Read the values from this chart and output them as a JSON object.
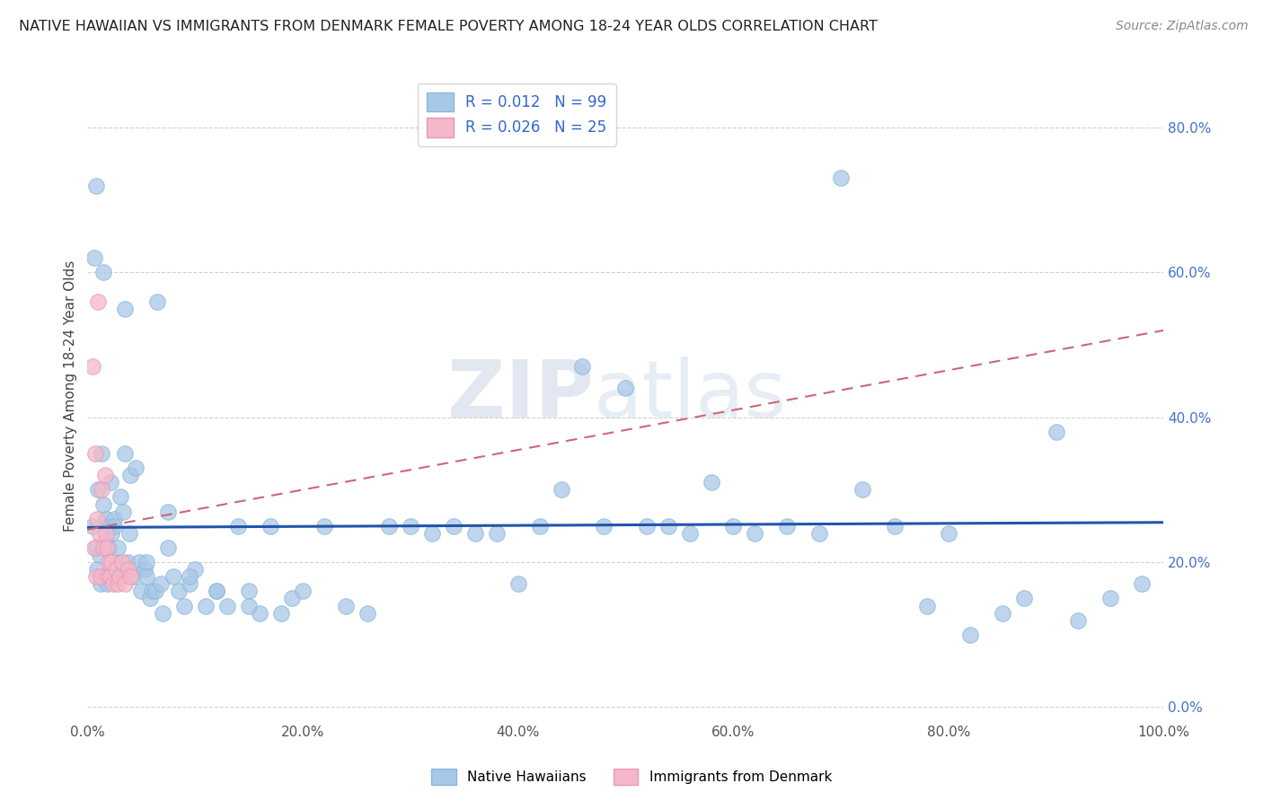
{
  "title": "NATIVE HAWAIIAN VS IMMIGRANTS FROM DENMARK FEMALE POVERTY AMONG 18-24 YEAR OLDS CORRELATION CHART",
  "source": "Source: ZipAtlas.com",
  "ylabel": "Female Poverty Among 18-24 Year Olds",
  "watermark": "ZIPatlas",
  "r_blue": 0.012,
  "n_blue": 99,
  "r_pink": 0.026,
  "n_pink": 25,
  "legend_label_blue": "Native Hawaiians",
  "legend_label_pink": "Immigrants from Denmark",
  "blue_color": "#a8c8e8",
  "pink_color": "#f4b8c8",
  "trend_blue_color": "#2255aa",
  "trend_pink_color": "#cc6677",
  "xlim": [
    0.0,
    1.0
  ],
  "ylim": [
    -0.02,
    0.88
  ],
  "xticks": [
    0.0,
    0.2,
    0.4,
    0.6,
    0.8,
    1.0
  ],
  "yticks_right": [
    0.0,
    0.2,
    0.4,
    0.6,
    0.8
  ],
  "background_color": "#ffffff",
  "grid_color": "#cccccc",
  "blue_trend_y0": 0.248,
  "blue_trend_y1": 0.255,
  "pink_trend_y0": 0.245,
  "pink_trend_y1": 0.52,
  "blue_x": [
    0.005,
    0.006,
    0.008,
    0.009,
    0.01,
    0.011,
    0.012,
    0.013,
    0.015,
    0.016,
    0.017,
    0.018,
    0.019,
    0.02,
    0.021,
    0.022,
    0.023,
    0.025,
    0.027,
    0.028,
    0.03,
    0.031,
    0.033,
    0.035,
    0.037,
    0.039,
    0.04,
    0.042,
    0.045,
    0.048,
    0.05,
    0.053,
    0.055,
    0.058,
    0.06,
    0.063,
    0.065,
    0.068,
    0.07,
    0.075,
    0.08,
    0.085,
    0.09,
    0.095,
    0.1,
    0.11,
    0.12,
    0.13,
    0.14,
    0.15,
    0.16,
    0.17,
    0.18,
    0.19,
    0.2,
    0.22,
    0.24,
    0.26,
    0.28,
    0.3,
    0.32,
    0.34,
    0.36,
    0.38,
    0.4,
    0.42,
    0.44,
    0.46,
    0.48,
    0.5,
    0.52,
    0.54,
    0.56,
    0.58,
    0.6,
    0.62,
    0.65,
    0.68,
    0.7,
    0.72,
    0.75,
    0.78,
    0.8,
    0.82,
    0.85,
    0.87,
    0.9,
    0.92,
    0.95,
    0.98,
    0.008,
    0.015,
    0.025,
    0.035,
    0.055,
    0.075,
    0.095,
    0.12,
    0.15
  ],
  "blue_y": [
    0.25,
    0.62,
    0.22,
    0.19,
    0.3,
    0.21,
    0.17,
    0.35,
    0.28,
    0.23,
    0.26,
    0.17,
    0.25,
    0.22,
    0.31,
    0.24,
    0.18,
    0.26,
    0.2,
    0.22,
    0.18,
    0.29,
    0.27,
    0.55,
    0.2,
    0.24,
    0.32,
    0.18,
    0.33,
    0.2,
    0.16,
    0.19,
    0.2,
    0.15,
    0.16,
    0.16,
    0.56,
    0.17,
    0.13,
    0.22,
    0.18,
    0.16,
    0.14,
    0.17,
    0.19,
    0.14,
    0.16,
    0.14,
    0.25,
    0.16,
    0.13,
    0.25,
    0.13,
    0.15,
    0.16,
    0.25,
    0.14,
    0.13,
    0.25,
    0.25,
    0.24,
    0.25,
    0.24,
    0.24,
    0.17,
    0.25,
    0.3,
    0.47,
    0.25,
    0.44,
    0.25,
    0.25,
    0.24,
    0.31,
    0.25,
    0.24,
    0.25,
    0.24,
    0.73,
    0.3,
    0.25,
    0.14,
    0.24,
    0.1,
    0.13,
    0.15,
    0.38,
    0.12,
    0.15,
    0.17,
    0.72,
    0.6,
    0.25,
    0.35,
    0.18,
    0.27,
    0.18,
    0.16,
    0.14
  ],
  "pink_x": [
    0.005,
    0.006,
    0.007,
    0.008,
    0.009,
    0.01,
    0.011,
    0.012,
    0.013,
    0.015,
    0.016,
    0.017,
    0.018,
    0.019,
    0.02,
    0.021,
    0.022,
    0.024,
    0.026,
    0.028,
    0.03,
    0.032,
    0.035,
    0.038,
    0.04
  ],
  "pink_y": [
    0.47,
    0.22,
    0.35,
    0.18,
    0.26,
    0.56,
    0.24,
    0.18,
    0.3,
    0.22,
    0.32,
    0.24,
    0.22,
    0.18,
    0.2,
    0.18,
    0.2,
    0.17,
    0.19,
    0.17,
    0.18,
    0.2,
    0.17,
    0.19,
    0.18
  ]
}
